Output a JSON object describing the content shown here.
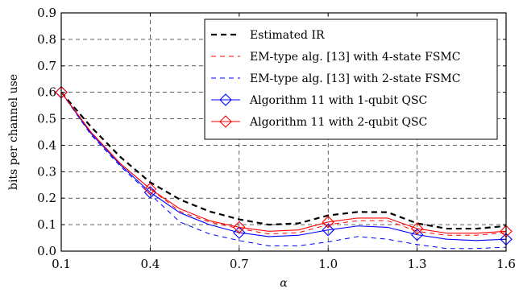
{
  "chart_data": {
    "type": "line",
    "xlabel": "α",
    "ylabel": "bits per channel use",
    "xlim": [
      0.1,
      1.6
    ],
    "ylim": [
      0.0,
      0.9
    ],
    "x_ticks": [
      "0.1",
      "0.4",
      "0.7",
      "1.0",
      "1.3",
      "1.6"
    ],
    "y_ticks": [
      "0.0",
      "0.1",
      "0.2",
      "0.3",
      "0.4",
      "0.5",
      "0.6",
      "0.7",
      "0.8",
      "0.9"
    ],
    "x_tick_values": [
      0.1,
      0.4,
      0.7,
      1.0,
      1.3,
      1.6
    ],
    "y_tick_values": [
      0.0,
      0.1,
      0.2,
      0.3,
      0.4,
      0.5,
      0.6,
      0.7,
      0.8,
      0.9
    ],
    "grid": true,
    "legend_position": "top-right",
    "series": [
      {
        "name": "Estimated IR",
        "color": "#000000",
        "style": "dashed-thick",
        "marker": "none",
        "x": [
          0.1,
          0.2,
          0.3,
          0.4,
          0.5,
          0.6,
          0.7,
          0.8,
          0.9,
          1.0,
          1.1,
          1.2,
          1.3,
          1.4,
          1.5,
          1.6
        ],
        "y": [
          0.6,
          0.47,
          0.355,
          0.26,
          0.195,
          0.15,
          0.12,
          0.1,
          0.105,
          0.135,
          0.148,
          0.147,
          0.105,
          0.085,
          0.085,
          0.095
        ]
      },
      {
        "name": "EM-type alg. [13] with 4-state FSMC",
        "color": "#ff0000",
        "style": "dashed",
        "marker": "none",
        "x": [
          0.1,
          0.2,
          0.3,
          0.4,
          0.5,
          0.6,
          0.7,
          0.8,
          0.9,
          1.0,
          1.1,
          1.2,
          1.3,
          1.4,
          1.5,
          1.6
        ],
        "y": [
          0.6,
          0.45,
          0.33,
          0.235,
          0.15,
          0.11,
          0.085,
          0.065,
          0.07,
          0.1,
          0.115,
          0.115,
          0.075,
          0.06,
          0.06,
          0.07
        ]
      },
      {
        "name": "EM-type alg. [13] with 2-state FSMC",
        "color": "#0000ff",
        "style": "dashed",
        "marker": "none",
        "x": [
          0.1,
          0.2,
          0.3,
          0.4,
          0.5,
          0.6,
          0.7,
          0.8,
          0.9,
          1.0,
          1.1,
          1.2,
          1.3,
          1.4,
          1.5,
          1.6
        ],
        "y": [
          0.6,
          0.44,
          0.32,
          0.215,
          0.11,
          0.065,
          0.04,
          0.02,
          0.02,
          0.035,
          0.055,
          0.045,
          0.025,
          0.01,
          0.01,
          0.015
        ]
      },
      {
        "name": "Algorithm 11 with 1-qubit QSC",
        "color": "#0000ff",
        "style": "solid",
        "marker": "diamond",
        "x": [
          0.1,
          0.2,
          0.3,
          0.4,
          0.5,
          0.6,
          0.7,
          0.8,
          0.9,
          1.0,
          1.1,
          1.2,
          1.3,
          1.4,
          1.5,
          1.6
        ],
        "y": [
          0.6,
          0.445,
          0.325,
          0.222,
          0.145,
          0.1,
          0.07,
          0.055,
          0.06,
          0.08,
          0.095,
          0.09,
          0.062,
          0.045,
          0.04,
          0.045
        ]
      },
      {
        "name": "Algorithm 11 with 2-qubit QSC",
        "color": "#ff0000",
        "style": "solid",
        "marker": "diamond",
        "x": [
          0.1,
          0.2,
          0.3,
          0.4,
          0.5,
          0.6,
          0.7,
          0.8,
          0.9,
          1.0,
          1.1,
          1.2,
          1.3,
          1.4,
          1.5,
          1.6
        ],
        "y": [
          0.6,
          0.45,
          0.33,
          0.235,
          0.16,
          0.115,
          0.09,
          0.075,
          0.08,
          0.11,
          0.125,
          0.125,
          0.085,
          0.068,
          0.068,
          0.075
        ]
      }
    ]
  }
}
